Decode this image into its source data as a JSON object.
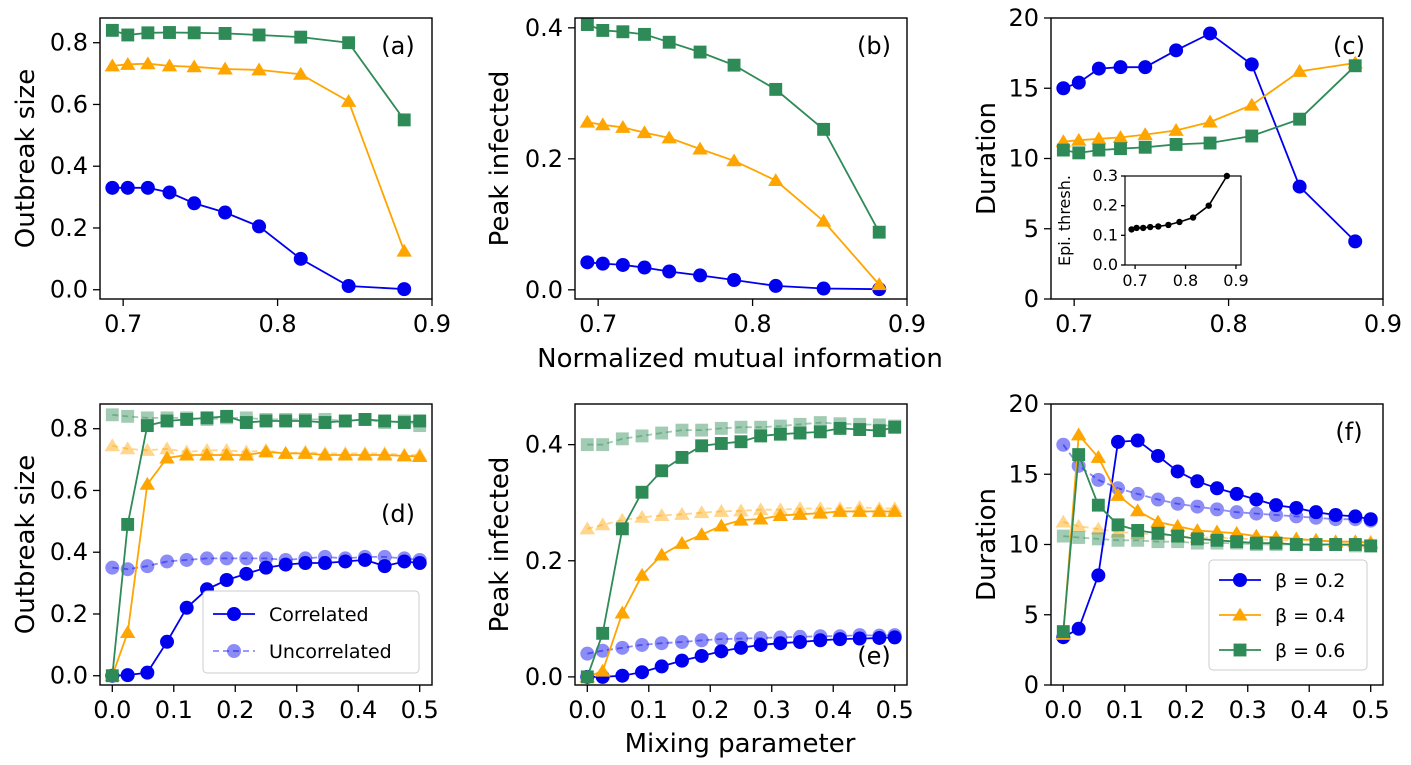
{
  "colors": {
    "beta_0_2": "#0000ee",
    "beta_0_4": "#ffa500",
    "beta_0_6": "#2e8b57",
    "inset": "#000000"
  },
  "shared_labels": {
    "top_xlabel": "Normalized mutual information",
    "bottom_xlabel": "Mixing parameter"
  },
  "chart_data": [
    {
      "id": "a",
      "type": "line",
      "tag": "(a)",
      "xlabel": "",
      "ylabel": "Outbreak size",
      "xlim": [
        0.685,
        0.9
      ],
      "ylim": [
        -0.03,
        0.88
      ],
      "xticks": [
        0.7,
        0.8,
        0.9
      ],
      "xticklabels": [
        "0.7",
        "0.8",
        "0.9"
      ],
      "yticks": [
        0,
        0.2,
        0.4,
        0.6,
        0.8
      ],
      "yticklabels": [
        "0.0",
        "0.2",
        "0.4",
        "0.6",
        "0.8"
      ],
      "x": [
        0.693,
        0.703,
        0.716,
        0.73,
        0.746,
        0.766,
        0.788,
        0.815,
        0.846,
        0.882
      ],
      "series": [
        {
          "name": "β = 0.2",
          "marker": "circle",
          "color": "#0000ee",
          "values": [
            0.33,
            0.33,
            0.33,
            0.315,
            0.28,
            0.25,
            0.205,
            0.1,
            0.012,
            0.002
          ]
        },
        {
          "name": "β = 0.4",
          "marker": "triangle",
          "color": "#ffa500",
          "values": [
            0.725,
            0.73,
            0.732,
            0.725,
            0.722,
            0.715,
            0.712,
            0.698,
            0.61,
            0.125
          ]
        },
        {
          "name": "β = 0.6",
          "marker": "square",
          "color": "#2e8b57",
          "values": [
            0.84,
            0.825,
            0.832,
            0.833,
            0.832,
            0.83,
            0.825,
            0.818,
            0.8,
            0.55
          ]
        }
      ]
    },
    {
      "id": "b",
      "type": "line",
      "tag": "(b)",
      "xlabel": "",
      "ylabel": "Peak infected",
      "xlim": [
        0.685,
        0.9
      ],
      "ylim": [
        -0.014,
        0.415
      ],
      "xticks": [
        0.7,
        0.8,
        0.9
      ],
      "xticklabels": [
        "0.7",
        "0.8",
        "0.9"
      ],
      "yticks": [
        0,
        0.2,
        0.4
      ],
      "yticklabels": [
        "0.0",
        "0.2",
        "0.4"
      ],
      "x": [
        0.693,
        0.703,
        0.716,
        0.73,
        0.746,
        0.766,
        0.788,
        0.815,
        0.846,
        0.882
      ],
      "series": [
        {
          "name": "β = 0.2",
          "marker": "circle",
          "color": "#0000ee",
          "values": [
            0.042,
            0.04,
            0.038,
            0.034,
            0.028,
            0.022,
            0.015,
            0.006,
            0.002,
            0.001
          ]
        },
        {
          "name": "β = 0.4",
          "marker": "triangle",
          "color": "#ffa500",
          "values": [
            0.256,
            0.252,
            0.248,
            0.24,
            0.232,
            0.215,
            0.197,
            0.167,
            0.105,
            0.008
          ]
        },
        {
          "name": "β = 0.6",
          "marker": "square",
          "color": "#2e8b57",
          "values": [
            0.405,
            0.396,
            0.394,
            0.39,
            0.378,
            0.363,
            0.343,
            0.306,
            0.245,
            0.088
          ]
        }
      ]
    },
    {
      "id": "c",
      "type": "line",
      "tag": "(c)",
      "xlabel": "",
      "ylabel": "Duration",
      "xlim": [
        0.685,
        0.9
      ],
      "ylim": [
        0,
        20
      ],
      "xticks": [
        0.7,
        0.8,
        0.9
      ],
      "xticklabels": [
        "0.7",
        "0.8",
        "0.9"
      ],
      "yticks": [
        0,
        5,
        10,
        15,
        20
      ],
      "yticklabels": [
        "0",
        "5",
        "10",
        "15",
        "20"
      ],
      "x": [
        0.693,
        0.703,
        0.716,
        0.73,
        0.746,
        0.766,
        0.788,
        0.815,
        0.846,
        0.882
      ],
      "series": [
        {
          "name": "β = 0.2",
          "marker": "circle",
          "color": "#0000ee",
          "values": [
            15.0,
            15.4,
            16.4,
            16.5,
            16.5,
            17.7,
            18.9,
            16.7,
            8.0,
            4.1
          ]
        },
        {
          "name": "β = 0.4",
          "marker": "triangle",
          "color": "#ffa500",
          "values": [
            11.2,
            11.3,
            11.4,
            11.5,
            11.7,
            12.0,
            12.6,
            13.8,
            16.2,
            16.8
          ]
        },
        {
          "name": "β = 0.6",
          "marker": "square",
          "color": "#2e8b57",
          "values": [
            10.6,
            10.4,
            10.6,
            10.7,
            10.8,
            11.0,
            11.1,
            11.6,
            12.8,
            16.6
          ]
        }
      ],
      "inset": {
        "type": "line",
        "ylabel": "Epi. thresh.",
        "xlim": [
          0.68,
          0.91
        ],
        "ylim": [
          0,
          0.3
        ],
        "xticks": [
          0.7,
          0.8,
          0.9
        ],
        "xticklabels": [
          "0.7",
          "0.8",
          "0.9"
        ],
        "yticks": [
          0,
          0.1,
          0.2,
          0.3
        ],
        "yticklabels": [
          "0.0",
          "0.1",
          "0.2",
          "0.3"
        ],
        "x": [
          0.693,
          0.703,
          0.716,
          0.73,
          0.746,
          0.766,
          0.788,
          0.815,
          0.846,
          0.882
        ],
        "values": [
          0.12,
          0.125,
          0.125,
          0.128,
          0.13,
          0.135,
          0.145,
          0.16,
          0.2,
          0.3
        ],
        "color": "#000000"
      }
    },
    {
      "id": "d",
      "type": "line",
      "tag": "(d)",
      "xlabel": "",
      "ylabel": "Outbreak size",
      "xlim": [
        -0.02,
        0.52
      ],
      "ylim": [
        -0.03,
        0.88
      ],
      "xticks": [
        0,
        0.1,
        0.2,
        0.3,
        0.4,
        0.5
      ],
      "xticklabels": [
        "0.0",
        "0.1",
        "0.2",
        "0.3",
        "0.4",
        "0.5"
      ],
      "yticks": [
        0,
        0.2,
        0.4,
        0.6,
        0.8
      ],
      "yticklabels": [
        "0.0",
        "0.2",
        "0.4",
        "0.6",
        "0.8"
      ],
      "x": [
        0,
        0.025,
        0.057,
        0.089,
        0.121,
        0.154,
        0.186,
        0.218,
        0.25,
        0.282,
        0.314,
        0.346,
        0.379,
        0.411,
        0.443,
        0.475,
        0.5
      ],
      "series": [
        {
          "name": "β = 0.2 correlated",
          "marker": "circle",
          "color": "#0000ee",
          "dashed": false,
          "alpha": 1,
          "values": [
            0.0,
            0.002,
            0.01,
            0.11,
            0.22,
            0.28,
            0.31,
            0.33,
            0.35,
            0.36,
            0.365,
            0.365,
            0.37,
            0.375,
            0.355,
            0.37,
            0.365
          ]
        },
        {
          "name": "β = 0.4 correlated",
          "marker": "triangle",
          "color": "#ffa500",
          "dashed": false,
          "alpha": 1,
          "values": [
            0.0,
            0.14,
            0.62,
            0.705,
            0.715,
            0.715,
            0.715,
            0.715,
            0.725,
            0.72,
            0.72,
            0.715,
            0.715,
            0.715,
            0.715,
            0.712,
            0.71
          ]
        },
        {
          "name": "β = 0.6 correlated",
          "marker": "square",
          "color": "#2e8b57",
          "dashed": false,
          "alpha": 1,
          "values": [
            0.0,
            0.49,
            0.81,
            0.825,
            0.83,
            0.835,
            0.84,
            0.82,
            0.825,
            0.825,
            0.825,
            0.82,
            0.825,
            0.83,
            0.825,
            0.82,
            0.825
          ]
        },
        {
          "name": "β = 0.2 uncorrelated",
          "marker": "circle",
          "color": "#0000ee",
          "dashed": true,
          "alpha": 0.45,
          "values": [
            0.35,
            0.345,
            0.355,
            0.37,
            0.375,
            0.38,
            0.38,
            0.38,
            0.38,
            0.375,
            0.38,
            0.385,
            0.38,
            0.385,
            0.385,
            0.38,
            0.375
          ]
        },
        {
          "name": "β = 0.4 uncorrelated",
          "marker": "triangle",
          "color": "#ffa500",
          "dashed": true,
          "alpha": 0.45,
          "values": [
            0.745,
            0.735,
            0.73,
            0.735,
            0.725,
            0.73,
            0.73,
            0.725,
            0.73,
            0.72,
            0.725,
            0.72,
            0.72,
            0.72,
            0.72,
            0.715,
            0.715
          ]
        },
        {
          "name": "β = 0.6 uncorrelated",
          "marker": "square",
          "color": "#2e8b57",
          "dashed": true,
          "alpha": 0.45,
          "values": [
            0.845,
            0.84,
            0.835,
            0.835,
            0.835,
            0.83,
            0.835,
            0.835,
            0.83,
            0.83,
            0.83,
            0.83,
            0.825,
            0.83,
            0.82,
            0.825,
            0.81
          ]
        }
      ],
      "legend": {
        "placement": "lower-right",
        "entries": [
          "Correlated",
          "Uncorrelated"
        ]
      }
    },
    {
      "id": "e",
      "type": "line",
      "tag": "(e)",
      "xlabel": "",
      "ylabel": "Peak infected",
      "xlim": [
        -0.02,
        0.52
      ],
      "ylim": [
        -0.014,
        0.47
      ],
      "xticks": [
        0,
        0.1,
        0.2,
        0.3,
        0.4,
        0.5
      ],
      "xticklabels": [
        "0.0",
        "0.1",
        "0.2",
        "0.3",
        "0.4",
        "0.5"
      ],
      "yticks": [
        0,
        0.2,
        0.4
      ],
      "yticklabels": [
        "0.0",
        "0.2",
        "0.4"
      ],
      "x": [
        0,
        0.025,
        0.057,
        0.089,
        0.121,
        0.154,
        0.186,
        0.218,
        0.25,
        0.282,
        0.314,
        0.346,
        0.379,
        0.411,
        0.443,
        0.475,
        0.5
      ],
      "series": [
        {
          "name": "β = 0.2 correlated",
          "marker": "circle",
          "color": "#0000ee",
          "dashed": false,
          "alpha": 1,
          "values": [
            0.0,
            0.0,
            0.002,
            0.008,
            0.018,
            0.028,
            0.036,
            0.044,
            0.05,
            0.055,
            0.058,
            0.06,
            0.063,
            0.065,
            0.066,
            0.067,
            0.068
          ]
        },
        {
          "name": "β = 0.4 correlated",
          "marker": "triangle",
          "color": "#ffa500",
          "dashed": false,
          "alpha": 1,
          "values": [
            0.0,
            0.01,
            0.11,
            0.175,
            0.21,
            0.23,
            0.245,
            0.26,
            0.27,
            0.272,
            0.278,
            0.28,
            0.282,
            0.285,
            0.285,
            0.285,
            0.285
          ]
        },
        {
          "name": "β = 0.6 correlated",
          "marker": "square",
          "color": "#2e8b57",
          "dashed": false,
          "alpha": 1,
          "values": [
            0.0,
            0.075,
            0.255,
            0.318,
            0.355,
            0.378,
            0.398,
            0.402,
            0.405,
            0.415,
            0.418,
            0.42,
            0.422,
            0.428,
            0.426,
            0.424,
            0.43
          ]
        },
        {
          "name": "β = 0.2 uncorrelated",
          "marker": "circle",
          "color": "#0000ee",
          "dashed": true,
          "alpha": 0.45,
          "values": [
            0.04,
            0.045,
            0.05,
            0.055,
            0.058,
            0.06,
            0.063,
            0.065,
            0.066,
            0.067,
            0.068,
            0.069,
            0.07,
            0.07,
            0.072,
            0.071,
            0.072
          ]
        },
        {
          "name": "β = 0.4 uncorrelated",
          "marker": "triangle",
          "color": "#ffa500",
          "dashed": true,
          "alpha": 0.45,
          "values": [
            0.255,
            0.262,
            0.27,
            0.275,
            0.278,
            0.28,
            0.283,
            0.285,
            0.286,
            0.288,
            0.288,
            0.29,
            0.29,
            0.29,
            0.292,
            0.29,
            0.29
          ]
        },
        {
          "name": "β = 0.6 uncorrelated",
          "marker": "square",
          "color": "#2e8b57",
          "dashed": true,
          "alpha": 0.45,
          "values": [
            0.4,
            0.4,
            0.41,
            0.415,
            0.42,
            0.425,
            0.425,
            0.428,
            0.43,
            0.43,
            0.432,
            0.435,
            0.438,
            0.436,
            0.435,
            0.434,
            0.432
          ]
        }
      ]
    },
    {
      "id": "f",
      "type": "line",
      "tag": "(f)",
      "xlabel": "",
      "ylabel": "Duration",
      "xlim": [
        -0.02,
        0.52
      ],
      "ylim": [
        0,
        20
      ],
      "xticks": [
        0,
        0.1,
        0.2,
        0.3,
        0.4,
        0.5
      ],
      "xticklabels": [
        "0.0",
        "0.1",
        "0.2",
        "0.3",
        "0.4",
        "0.5"
      ],
      "yticks": [
        0,
        5,
        10,
        15,
        20
      ],
      "yticklabels": [
        "0",
        "5",
        "10",
        "15",
        "20"
      ],
      "x": [
        0,
        0.025,
        0.057,
        0.089,
        0.121,
        0.154,
        0.186,
        0.218,
        0.25,
        0.282,
        0.314,
        0.346,
        0.379,
        0.411,
        0.443,
        0.475,
        0.5
      ],
      "series": [
        {
          "name": "β = 0.2 correlated",
          "marker": "circle",
          "color": "#0000ee",
          "dashed": false,
          "alpha": 1,
          "values": [
            3.4,
            4.0,
            7.8,
            17.3,
            17.4,
            16.3,
            15.2,
            14.5,
            14.0,
            13.6,
            13.2,
            12.8,
            12.6,
            12.3,
            12.1,
            12.0,
            11.8
          ]
        },
        {
          "name": "β = 0.4 correlated",
          "marker": "triangle",
          "color": "#ffa500",
          "dashed": false,
          "alpha": 1,
          "values": [
            3.6,
            17.8,
            16.2,
            13.5,
            12.4,
            11.6,
            11.3,
            11.0,
            10.9,
            10.8,
            10.6,
            10.5,
            10.4,
            10.3,
            10.2,
            10.2,
            10.1
          ]
        },
        {
          "name": "β = 0.6 correlated",
          "marker": "square",
          "color": "#2e8b57",
          "dashed": false,
          "alpha": 1,
          "values": [
            3.8,
            16.4,
            12.8,
            11.4,
            11.0,
            10.8,
            10.6,
            10.4,
            10.3,
            10.2,
            10.1,
            10.1,
            10.0,
            10.0,
            10.0,
            10.0,
            9.9
          ]
        },
        {
          "name": "β = 0.2 uncorrelated",
          "marker": "circle",
          "color": "#0000ee",
          "dashed": true,
          "alpha": 0.45,
          "values": [
            17.1,
            15.6,
            14.6,
            14.0,
            13.6,
            13.2,
            12.9,
            12.7,
            12.5,
            12.3,
            12.2,
            12.1,
            12.0,
            11.9,
            11.8,
            11.8,
            11.7
          ]
        },
        {
          "name": "β = 0.4 uncorrelated",
          "marker": "triangle",
          "color": "#ffa500",
          "dashed": true,
          "alpha": 0.45,
          "values": [
            11.6,
            11.3,
            11.1,
            10.9,
            10.8,
            10.7,
            10.6,
            10.5,
            10.5,
            10.4,
            10.4,
            10.3,
            10.3,
            10.3,
            10.2,
            10.2,
            10.2
          ]
        },
        {
          "name": "β = 0.6 uncorrelated",
          "marker": "square",
          "color": "#2e8b57",
          "dashed": true,
          "alpha": 0.45,
          "values": [
            10.6,
            10.5,
            10.4,
            10.3,
            10.3,
            10.2,
            10.2,
            10.1,
            10.1,
            10.1,
            10.0,
            10.0,
            10.0,
            10.0,
            10.0,
            9.9,
            9.9
          ]
        }
      ],
      "legend": {
        "placement": "lower-right",
        "entries": [
          "β = 0.2",
          "β = 0.4",
          "β = 0.6"
        ]
      }
    }
  ]
}
